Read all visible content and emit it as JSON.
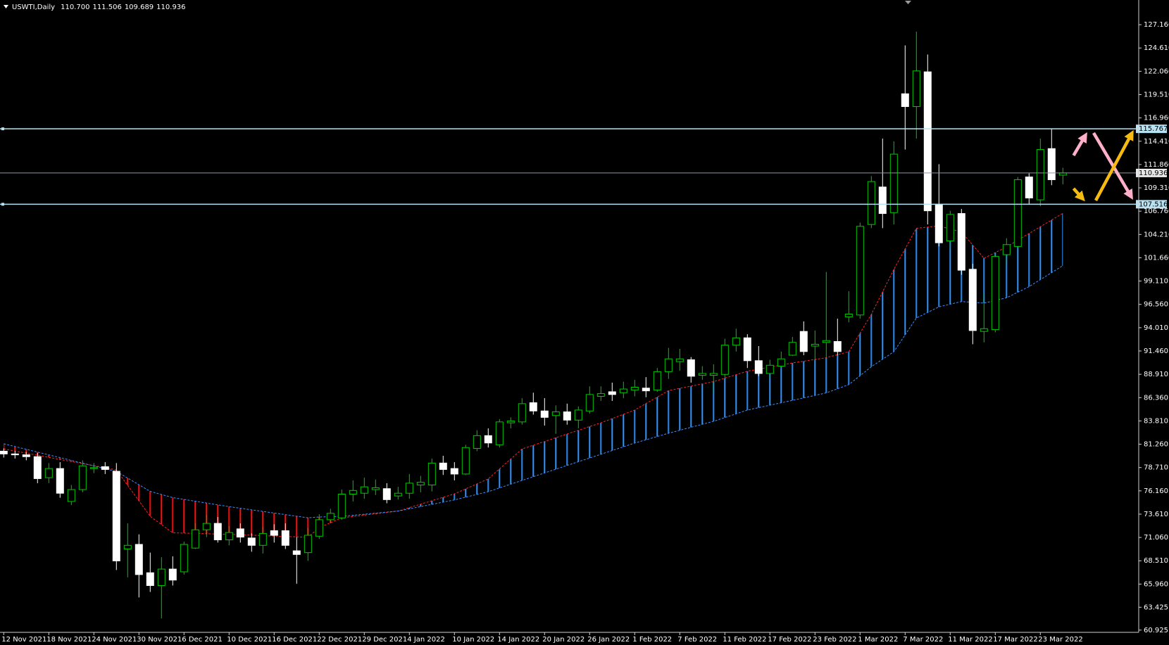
{
  "chart_data": {
    "type": "candlestick",
    "title": "USWTI,Daily",
    "title_prices": [
      "110.700",
      "111.506",
      "109.689",
      "110.936"
    ],
    "categories": [
      "12 Nov 2021",
      null,
      null,
      null,
      "18 Nov 2021",
      null,
      null,
      null,
      "24 Nov 2021",
      null,
      null,
      null,
      "30 Nov 2021",
      null,
      null,
      null,
      "6 Dec 2021",
      null,
      null,
      null,
      "10 Dec 2021",
      null,
      null,
      null,
      "16 Dec 2021",
      null,
      null,
      null,
      "22 Dec 2021",
      null,
      null,
      null,
      "29 Dec 2021",
      null,
      null,
      null,
      "4 Jan 2022",
      null,
      null,
      null,
      "10 Jan 2022",
      null,
      null,
      null,
      "14 Jan 2022",
      null,
      null,
      null,
      "20 Jan 2022",
      null,
      null,
      null,
      "26 Jan 2022",
      null,
      null,
      null,
      "1 Feb 2022",
      null,
      null,
      null,
      "7 Feb 2022",
      null,
      null,
      null,
      "11 Feb 2022",
      null,
      null,
      null,
      "17 Feb 2022",
      null,
      null,
      null,
      "23 Feb 2022",
      null,
      null,
      null,
      "1 Mar 2022",
      null,
      null,
      null,
      "7 Mar 2022",
      null,
      null,
      null,
      "11 Mar 2022",
      null,
      null,
      null,
      "17 Mar 2022",
      null,
      null,
      null,
      "23 Mar 2022",
      null,
      null
    ],
    "open": [
      80.5,
      80.2,
      80.1,
      79.9,
      77.6,
      78.6,
      75.0,
      76.3,
      78.6,
      78.8,
      78.3,
      69.8,
      70.3,
      67.2,
      65.8,
      67.6,
      67.3,
      69.9,
      71.9,
      72.6,
      70.8,
      72.0,
      71.0,
      70.2,
      71.8,
      71.8,
      69.6,
      69.4,
      71.2,
      73.0,
      73.2,
      75.8,
      75.9,
      76.3,
      76.4,
      75.6,
      75.9,
      76.8,
      76.8,
      79.2,
      78.6,
      78.0,
      80.8,
      82.2,
      81.2,
      83.6,
      83.7,
      85.8,
      84.9,
      84.4,
      84.8,
      83.9,
      84.9,
      86.5,
      87.0,
      86.9,
      87.2,
      87.4,
      87.2,
      89.2,
      90.3,
      90.5,
      88.8,
      88.8,
      88.9,
      92.1,
      92.9,
      90.4,
      89.0,
      89.8,
      91.0,
      93.6,
      92.0,
      92.4,
      92.5,
      95.2,
      95.4,
      105.3,
      109.4,
      106.6,
      119.6,
      118.2,
      122.0,
      107.5,
      103.5,
      106.5,
      100.4,
      93.6,
      93.8,
      102.0,
      102.9,
      110.5,
      108.0,
      113.6,
      110.7
    ],
    "high": [
      80.8,
      80.5,
      80.4,
      80.3,
      79.2,
      79.3,
      76.8,
      79.5,
      79.2,
      79.3,
      79.2,
      72.6,
      71.4,
      69.4,
      68.9,
      69.0,
      70.6,
      72.6,
      73.5,
      73.3,
      72.3,
      72.6,
      71.5,
      72.2,
      72.5,
      72.6,
      71.1,
      72.1,
      73.6,
      74.2,
      76.3,
      77.3,
      77.6,
      77.4,
      77.0,
      76.6,
      78.0,
      77.8,
      79.7,
      80.0,
      79.3,
      81.2,
      82.8,
      83.0,
      84.0,
      84.2,
      86.3,
      86.9,
      86.3,
      85.5,
      85.7,
      85.4,
      87.6,
      87.6,
      88.0,
      88.1,
      88.3,
      88.6,
      89.6,
      91.8,
      91.7,
      90.8,
      89.8,
      90.0,
      92.8,
      93.9,
      93.3,
      92.0,
      90.5,
      91.4,
      93.0,
      94.7,
      93.7,
      100.1,
      95.0,
      98.0,
      105.5,
      110.6,
      114.7,
      114.4,
      124.9,
      126.4,
      123.9,
      111.9,
      106.8,
      107.0,
      101.0,
      97.8,
      102.1,
      103.8,
      110.5,
      110.9,
      114.7,
      115.8,
      111.506
    ],
    "low": [
      79.8,
      79.7,
      79.5,
      77.0,
      77.0,
      75.4,
      74.6,
      76.0,
      78.1,
      78.0,
      67.5,
      66.7,
      64.5,
      65.1,
      62.2,
      65.8,
      67.0,
      69.8,
      71.1,
      70.5,
      70.2,
      70.5,
      69.5,
      69.3,
      70.5,
      69.8,
      66.0,
      68.5,
      70.9,
      72.6,
      73.0,
      75.0,
      75.3,
      75.7,
      74.8,
      75.2,
      75.3,
      76.0,
      76.1,
      77.9,
      77.3,
      77.9,
      80.5,
      80.9,
      80.9,
      83.0,
      83.4,
      84.5,
      83.3,
      82.4,
      83.4,
      83.0,
      84.6,
      86.0,
      86.0,
      86.3,
      86.5,
      86.4,
      87.0,
      88.4,
      89.3,
      88.0,
      88.3,
      86.9,
      88.5,
      91.4,
      89.6,
      88.7,
      88.5,
      89.5,
      90.9,
      91.0,
      90.4,
      90.7,
      91.0,
      94.6,
      95.0,
      104.9,
      104.9,
      105.3,
      113.5,
      114.7,
      105.3,
      102.9,
      102.6,
      99.8,
      92.2,
      92.4,
      93.5,
      100.9,
      102.6,
      107.5,
      107.3,
      109.6,
      109.689
    ],
    "close": [
      80.2,
      80.1,
      79.9,
      77.5,
      78.6,
      75.9,
      76.3,
      78.9,
      78.7,
      78.5,
      68.5,
      70.2,
      67.0,
      65.8,
      67.6,
      66.4,
      70.3,
      71.9,
      72.6,
      70.8,
      71.6,
      71.1,
      70.2,
      71.5,
      71.3,
      70.2,
      69.2,
      71.3,
      73.0,
      73.7,
      75.8,
      76.2,
      76.6,
      76.5,
      75.2,
      75.9,
      77.0,
      77.1,
      79.2,
      78.5,
      78.0,
      80.9,
      82.2,
      81.4,
      83.7,
      83.8,
      85.7,
      84.9,
      84.2,
      84.8,
      83.9,
      85.0,
      86.7,
      86.8,
      86.7,
      87.3,
      87.5,
      87.1,
      89.2,
      90.6,
      90.6,
      88.7,
      89.0,
      89.0,
      92.1,
      92.9,
      90.4,
      89.0,
      89.9,
      90.6,
      92.4,
      91.4,
      92.2,
      92.6,
      91.4,
      95.5,
      105.1,
      110.0,
      106.5,
      113.0,
      118.2,
      122.1,
      106.8,
      103.3,
      106.4,
      100.3,
      93.7,
      93.9,
      101.8,
      103.1,
      110.2,
      108.2,
      113.5,
      110.2,
      110.936
    ],
    "bull_color": "#00c800",
    "bull_fill": "#000000",
    "bear_color": "#ffffff",
    "cloud": {
      "x": [
        0,
        10,
        13,
        15,
        20,
        27,
        28,
        30,
        35,
        40,
        43,
        46,
        50,
        53,
        56,
        59,
        63,
        66,
        70,
        73,
        75,
        77,
        79,
        81,
        83,
        85,
        87,
        89,
        91,
        94
      ],
      "a": [
        80.74,
        78.45,
        73.37,
        71.57,
        71.4,
        71.08,
        72.14,
        73.21,
        73.95,
        75.83,
        77.47,
        80.74,
        82.38,
        83.6,
        85.0,
        87.13,
        88.11,
        89.25,
        90.15,
        90.73,
        91.38,
        95.47,
        100.39,
        104.89,
        105.14,
        104.48,
        101.61,
        102.84,
        104.32,
        106.53
      ],
      "b": [
        81.31,
        78.28,
        76.1,
        75.42,
        74.43,
        73.21,
        73.3,
        73.37,
        73.95,
        75.17,
        76.07,
        77.3,
        78.94,
        80.16,
        81.39,
        82.46,
        83.77,
        85.0,
        86.06,
        86.88,
        87.78,
        89.74,
        91.38,
        95.07,
        96.29,
        96.87,
        96.7,
        97.28,
        98.5,
        100.8
      ],
      "a_color": "#ff2020",
      "b_color": "#3a8fff",
      "up_fill": "#2f95ff",
      "down_fill": "#ff1010"
    },
    "levels": [
      {
        "value": 115.767,
        "color": "#b8e2f2"
      },
      {
        "value": 107.516,
        "color": "#b8e2f2"
      }
    ],
    "price_line_color": "#8898a8",
    "ylim": [
      60.68,
      129.86
    ],
    "yticks": [
      {
        "value": 127.16,
        "label": "127.160"
      },
      {
        "value": 124.61,
        "label": "124.610"
      },
      {
        "value": 122.06,
        "label": "122.060"
      },
      {
        "value": 119.51,
        "label": "119.510"
      },
      {
        "value": 116.96,
        "label": "116.960"
      },
      {
        "value": 114.41,
        "label": "114.410"
      },
      {
        "value": 111.86,
        "label": "111.860"
      },
      {
        "value": 109.31,
        "label": "109.310"
      },
      {
        "value": 106.76,
        "label": "106.760"
      },
      {
        "value": 104.21,
        "label": "104.210"
      },
      {
        "value": 101.66,
        "label": "101.660"
      },
      {
        "value": 99.11,
        "label": "99.110"
      },
      {
        "value": 96.56,
        "label": "96.560"
      },
      {
        "value": 94.01,
        "label": "94.010"
      },
      {
        "value": 91.46,
        "label": "91.460"
      },
      {
        "value": 88.91,
        "label": "88.910"
      },
      {
        "value": 86.36,
        "label": "86.360"
      },
      {
        "value": 83.81,
        "label": "83.810"
      },
      {
        "value": 81.26,
        "label": "81.260"
      },
      {
        "value": 78.71,
        "label": "78.710"
      },
      {
        "value": 76.16,
        "label": "76.160"
      },
      {
        "value": 73.61,
        "label": "73.610"
      },
      {
        "value": 71.06,
        "label": "71.060"
      },
      {
        "value": 68.51,
        "label": "68.510"
      },
      {
        "value": 65.96,
        "label": "65.960"
      },
      63.425,
      60.925
    ]
  }
}
